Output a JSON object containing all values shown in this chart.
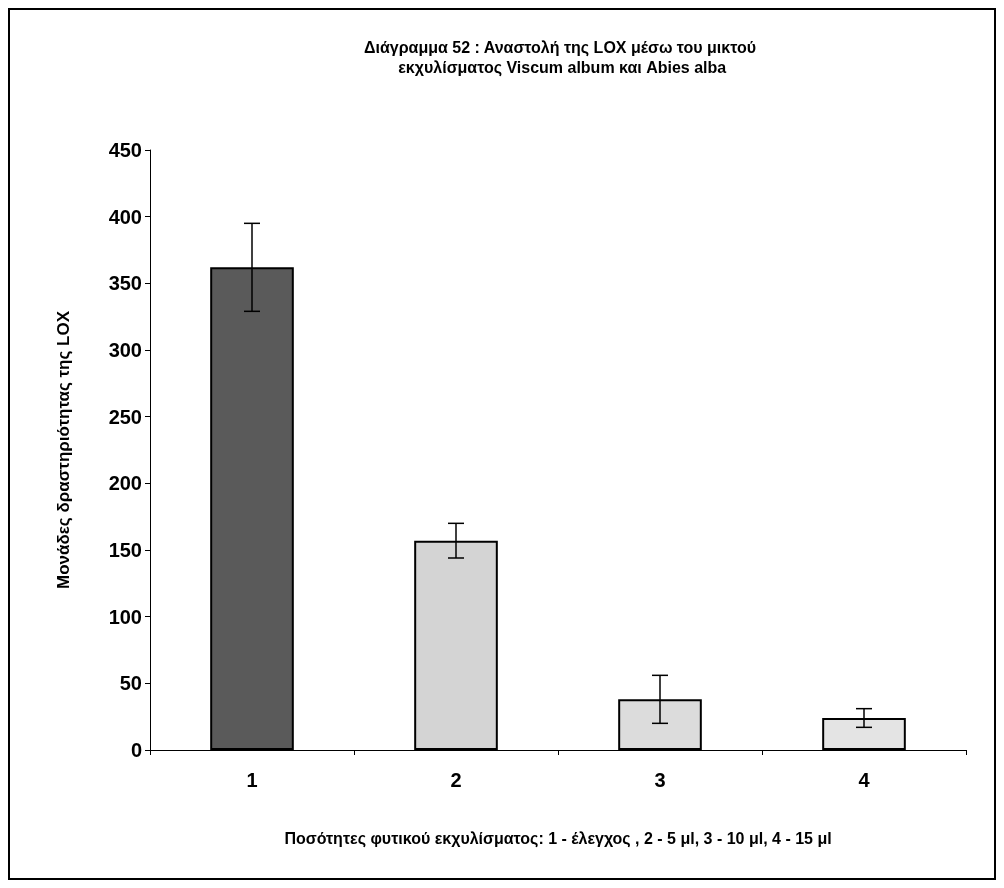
{
  "chart_data": {
    "type": "bar",
    "title": "Διάγραμμα 52 : Αναστολή της LOX μέσω του μικτού εκχυλίσματος Viscum album και Abies alba",
    "xlabel": "Ποσότητες φυτικού εκχυλίσματος: 1 - έλεγχος , 2 - 5 μl, 3 - 10 μl, 4 - 15 μl",
    "ylabel": "Μονάδες δραστηριότητας της LOX",
    "categories": [
      "1",
      "2",
      "3",
      "4"
    ],
    "values": [
      362,
      157,
      38,
      24
    ],
    "errors": [
      33,
      13,
      18,
      7
    ],
    "colors": [
      "#5a5a5a",
      "#d4d4d4",
      "#dcdcdc",
      "#e4e4e4"
    ],
    "ylim": [
      0,
      450
    ],
    "yticks": [
      0,
      50,
      100,
      150,
      200,
      250,
      300,
      350,
      400,
      450
    ],
    "grid": false
  }
}
